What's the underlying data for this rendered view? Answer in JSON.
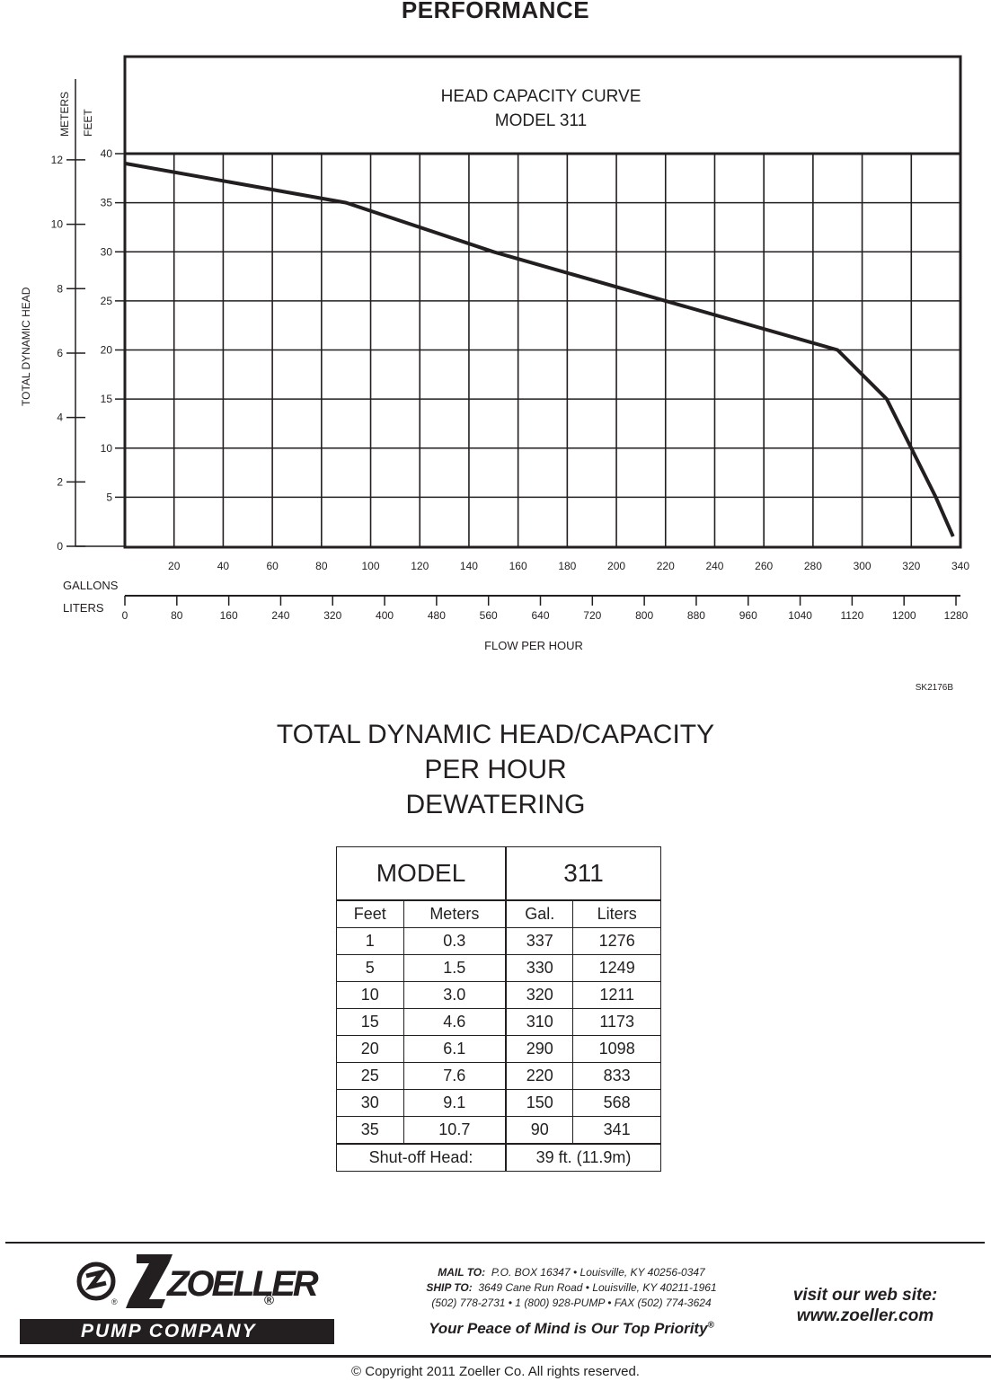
{
  "page_title": "PERFORMANCE",
  "chart_data": {
    "type": "line",
    "title": "HEAD CAPACITY CURVE",
    "subtitle": "MODEL 311",
    "ylabel": "TOTAL DYNAMIC HEAD",
    "ylabel_meters": "METERS",
    "ylabel_feet": "FEET",
    "xlabel": "FLOW PER HOUR",
    "xlabel_gallons": "GALLONS",
    "xlabel_liters": "LITERS",
    "ylim_feet": [
      0,
      40
    ],
    "xlim_gallons": [
      0,
      340
    ],
    "feet_ticks": [
      5,
      10,
      15,
      20,
      25,
      30,
      35,
      40
    ],
    "meters_ticks": [
      0,
      2,
      4,
      6,
      8,
      10,
      12
    ],
    "gallons_ticks": [
      20,
      40,
      60,
      80,
      100,
      120,
      140,
      160,
      180,
      200,
      220,
      240,
      260,
      280,
      300,
      320,
      340
    ],
    "liters_ticks": [
      0,
      80,
      160,
      240,
      320,
      400,
      480,
      560,
      640,
      720,
      800,
      880,
      960,
      1040,
      1120,
      1200,
      1280
    ],
    "grid": true,
    "series": [
      {
        "name": "Model 311",
        "x": [
          0,
          90,
          150,
          220,
          290,
          310,
          330,
          337
        ],
        "y": [
          39,
          35,
          30,
          25,
          20,
          15,
          5,
          1
        ]
      }
    ],
    "code": "SK2176B"
  },
  "section_title": [
    "TOTAL DYNAMIC HEAD/CAPACITY",
    "PER HOUR",
    "DEWATERING"
  ],
  "table": {
    "model_label": "MODEL",
    "model_value": "311",
    "headers": [
      "Feet",
      "Meters",
      "Gal.",
      "Liters"
    ],
    "rows": [
      [
        "1",
        "0.3",
        "337",
        "1276"
      ],
      [
        "5",
        "1.5",
        "330",
        "1249"
      ],
      [
        "10",
        "3.0",
        "320",
        "1211"
      ],
      [
        "15",
        "4.6",
        "310",
        "1173"
      ],
      [
        "20",
        "6.1",
        "290",
        "1098"
      ],
      [
        "25",
        "7.6",
        "220",
        "833"
      ],
      [
        "30",
        "9.1",
        "150",
        "568"
      ],
      [
        "35",
        "10.7",
        "90",
        "341"
      ]
    ],
    "shutoff_label": "Shut-off Head:",
    "shutoff_value": "39 ft. (11.9m)"
  },
  "footer": {
    "brand": "ZOELLER",
    "registered": "®",
    "company": "PUMP COMPANY",
    "mail_label": "MAIL TO:",
    "mail_text": "P.O.  BOX 16347 • Louisville, KY  40256-0347",
    "ship_label": "SHIP TO:",
    "ship_text": "3649 Cane Run Road • Louisville, KY  40211-1961",
    "phone_text": "(502) 778-2731 • 1 (800) 928-PUMP • FAX (502) 774-3624",
    "tagline": "Your Peace of Mind is Our Top Priority",
    "tagline_mark": "®",
    "website_line1": "visit our web site:",
    "website_line2": "www.zoeller.com",
    "copyright": "© Copyright 2011  Zoeller Co. All rights reserved."
  }
}
